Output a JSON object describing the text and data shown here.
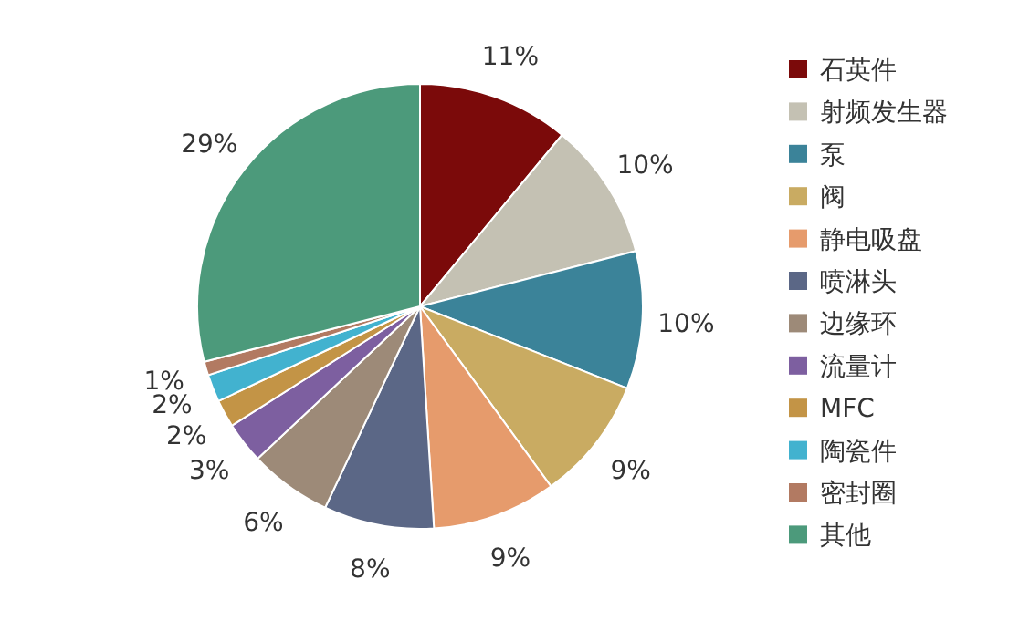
{
  "chart_data": {
    "type": "pie",
    "legend": "right",
    "value_labels": [
      "11%",
      "10%",
      "10%",
      "9%",
      "9%",
      "8%",
      "6%",
      "3%",
      "2%",
      "2%",
      "1%",
      "29%"
    ],
    "categories": [
      "石英件",
      "射频发生器",
      "泵",
      "阀",
      "静电吸盘",
      "喷淋头",
      "边缘环",
      "流量计",
      "MFC",
      "陶瓷件",
      "密封圈",
      "其他"
    ],
    "values": [
      11,
      10,
      10,
      9,
      9,
      8,
      6,
      3,
      2,
      2,
      1,
      29
    ],
    "colors": [
      "#7b0a0a",
      "#c4c1b3",
      "#3b8399",
      "#c9ab62",
      "#e69b6c",
      "#5b6786",
      "#9d8a78",
      "#7d5fa0",
      "#c39446",
      "#42b2cf",
      "#b27a62",
      "#4c9a7b"
    ]
  }
}
